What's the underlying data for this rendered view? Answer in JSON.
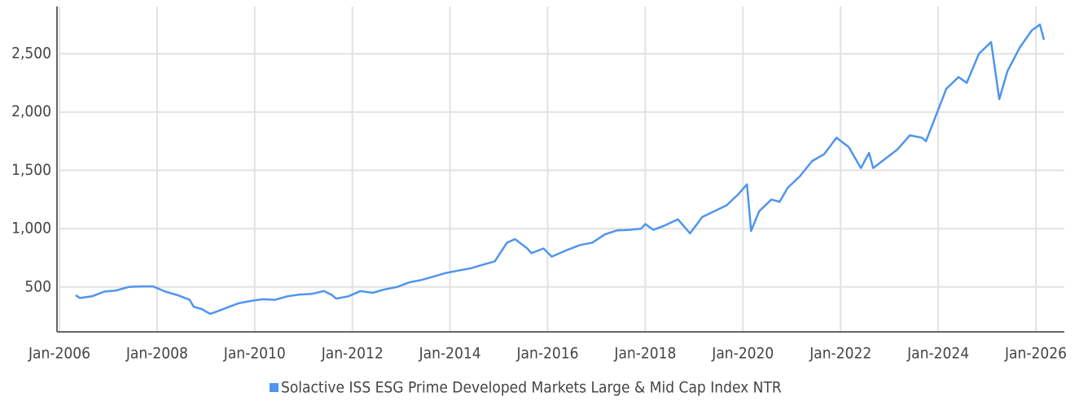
{
  "chart_data": {
    "type": "line",
    "x": [
      "2006-05",
      "2006-06",
      "2006-09",
      "2006-12",
      "2007-03",
      "2007-06",
      "2007-09",
      "2007-12",
      "2008-01",
      "2008-03",
      "2008-06",
      "2008-09",
      "2008-10",
      "2008-12",
      "2009-02",
      "2009-03",
      "2009-06",
      "2009-09",
      "2009-12",
      "2010-03",
      "2010-06",
      "2010-09",
      "2010-12",
      "2011-03",
      "2011-06",
      "2011-08",
      "2011-09",
      "2011-12",
      "2012-03",
      "2012-06",
      "2012-09",
      "2012-12",
      "2013-03",
      "2013-06",
      "2013-09",
      "2013-12",
      "2014-03",
      "2014-06",
      "2014-09",
      "2014-12",
      "2015-03",
      "2015-05",
      "2015-08",
      "2015-09",
      "2015-12",
      "2016-02",
      "2016-06",
      "2016-09",
      "2016-12",
      "2017-03",
      "2017-06",
      "2017-09",
      "2017-12",
      "2018-01",
      "2018-03",
      "2018-06",
      "2018-09",
      "2018-12",
      "2019-03",
      "2019-06",
      "2019-09",
      "2019-12",
      "2020-02",
      "2020-03",
      "2020-05",
      "2020-08",
      "2020-10",
      "2020-12",
      "2021-03",
      "2021-06",
      "2021-09",
      "2021-12",
      "2022-03",
      "2022-06",
      "2022-08",
      "2022-09",
      "2022-12",
      "2023-03",
      "2023-06",
      "2023-09",
      "2023-10",
      "2023-12",
      "2024-03",
      "2024-06",
      "2024-08",
      "2024-11",
      "2025-02",
      "2025-04",
      "2025-06",
      "2025-09",
      "2025-12",
      "2026-02",
      "2026-03"
    ],
    "series": [
      {
        "name": "Solactive ISS ESG Prime Developed Markets Large & Mid Cap Index NTR",
        "color": "#4f95ee",
        "values": [
          430,
          405,
          420,
          460,
          470,
          500,
          505,
          505,
          490,
          460,
          430,
          390,
          330,
          310,
          270,
          280,
          320,
          360,
          380,
          395,
          390,
          420,
          435,
          440,
          465,
          430,
          400,
          420,
          465,
          450,
          480,
          500,
          540,
          560,
          590,
          620,
          640,
          660,
          690,
          720,
          880,
          910,
          830,
          790,
          830,
          760,
          820,
          860,
          880,
          950,
          985,
          990,
          1000,
          1040,
          990,
          1030,
          1080,
          960,
          1100,
          1150,
          1200,
          1300,
          1380,
          980,
          1150,
          1250,
          1230,
          1350,
          1450,
          1580,
          1640,
          1780,
          1700,
          1520,
          1650,
          1520,
          1600,
          1680,
          1800,
          1780,
          1750,
          1930,
          2200,
          2300,
          2250,
          2500,
          2600,
          2110,
          2350,
          2550,
          2700,
          2750,
          2620
        ]
      }
    ],
    "xlim": [
      "2006-01",
      "2026-08"
    ],
    "xticks": [
      {
        "value": "2006-01",
        "label": "Jan-2006"
      },
      {
        "value": "2008-01",
        "label": "Jan-2008"
      },
      {
        "value": "2010-01",
        "label": "Jan-2010"
      },
      {
        "value": "2012-01",
        "label": "Jan-2012"
      },
      {
        "value": "2014-01",
        "label": "Jan-2014"
      },
      {
        "value": "2016-01",
        "label": "Jan-2016"
      },
      {
        "value": "2018-01",
        "label": "Jan-2018"
      },
      {
        "value": "2020-01",
        "label": "Jan-2020"
      },
      {
        "value": "2022-01",
        "label": "Jan-2022"
      },
      {
        "value": "2024-01",
        "label": "Jan-2024"
      },
      {
        "value": "2026-01",
        "label": "Jan-2026"
      }
    ],
    "ylim": [
      115,
      2905
    ],
    "yticks": [
      500,
      {
        "value": 1000,
        "label": "1,000"
      },
      {
        "value": 1500,
        "label": "1,500"
      },
      {
        "value": 2000,
        "label": "2,000"
      },
      {
        "value": 2500,
        "label": "2,500"
      }
    ],
    "grid": true
  }
}
